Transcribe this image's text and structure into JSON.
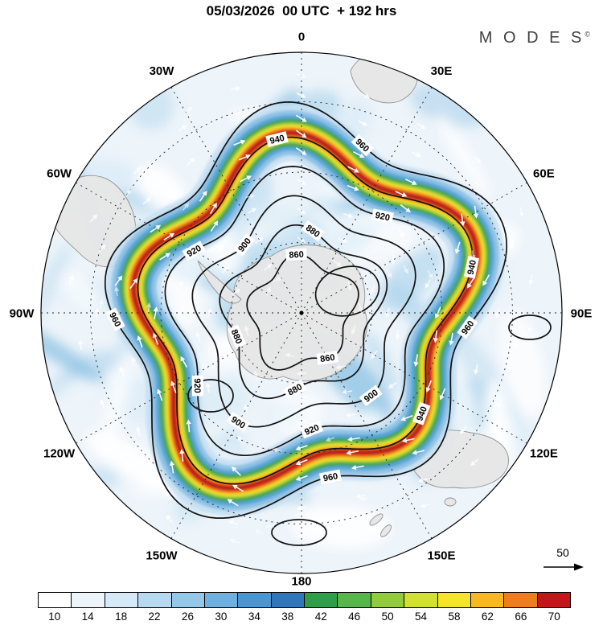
{
  "header": {
    "title": "05/03/2026  00 UTC  + 192 hrs",
    "logo_text": "M O D E S",
    "logo_sup": "©"
  },
  "chart_data": {
    "type": "heatmap",
    "title": "05/03/2026  00 UTC  + 192 hrs",
    "lon_labels": [
      {
        "text": "0",
        "angle": 0
      },
      {
        "text": "30E",
        "angle": 30
      },
      {
        "text": "60E",
        "angle": 60
      },
      {
        "text": "90E",
        "angle": 90
      },
      {
        "text": "120E",
        "angle": 120
      },
      {
        "text": "150E",
        "angle": 150
      },
      {
        "text": "180",
        "angle": 180
      },
      {
        "text": "150W",
        "angle": 210
      },
      {
        "text": "120W",
        "angle": 240
      },
      {
        "text": "90W",
        "angle": 270
      },
      {
        "text": "60W",
        "angle": 300
      },
      {
        "text": "30W",
        "angle": 330
      }
    ],
    "contour_labels": [
      {
        "text": "940",
        "angle": 352
      },
      {
        "text": "960",
        "angle": 20
      },
      {
        "text": "880",
        "angle": 8
      },
      {
        "text": "920",
        "angle": 40
      },
      {
        "text": "860",
        "angle": 355
      },
      {
        "text": "920",
        "angle": 175
      },
      {
        "text": "940",
        "angle": 75
      },
      {
        "text": "960",
        "angle": 95
      },
      {
        "text": "900",
        "angle": 320
      },
      {
        "text": "880",
        "angle": 185
      },
      {
        "text": "960",
        "angle": 268
      },
      {
        "text": "860",
        "angle": 150
      },
      {
        "text": "940",
        "angle": 130
      },
      {
        "text": "900",
        "angle": 140
      },
      {
        "text": "920",
        "angle": 235
      },
      {
        "text": "960",
        "angle": 170
      },
      {
        "text": "900",
        "angle": 210
      },
      {
        "text": "920",
        "angle": 300
      },
      {
        "text": "880",
        "angle": 250
      }
    ],
    "contour_levels_labeled": [
      "860",
      "880",
      "900",
      "920",
      "940",
      "960"
    ],
    "colorbar": {
      "tick_labels": [
        "10",
        "14",
        "18",
        "22",
        "26",
        "30",
        "34",
        "38",
        "42",
        "46",
        "50",
        "54",
        "58",
        "62",
        "66",
        "70"
      ],
      "cell_colors": [
        "#ffffff",
        "#edf5fb",
        "#d6e9f7",
        "#b8daf1",
        "#94c7e8",
        "#6fb0de",
        "#4b95d0",
        "#3276ba",
        "#2f9e49",
        "#58b54b",
        "#93cb3f",
        "#d2e02f",
        "#f6e42a",
        "#f8b81f",
        "#ef7d1b",
        "#c2161b"
      ]
    },
    "reference_vector_label": "50"
  }
}
